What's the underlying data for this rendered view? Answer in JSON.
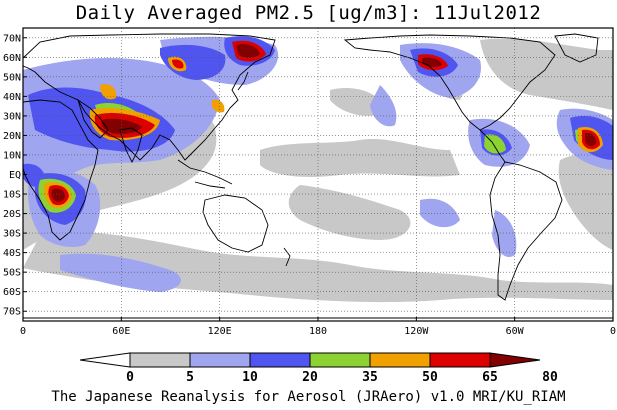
{
  "title": "Daily Averaged PM2.5 [ug/m3]: 11Jul2012",
  "footer": "The Japanese Reanalysis for Aerosol (JRAero) v1.0 MRI/KU_RIAM",
  "map": {
    "projection": "equirectangular",
    "central_longitude": 180,
    "lon_range": [
      0,
      360
    ],
    "lat_range": [
      -75,
      75
    ],
    "grid": true,
    "lat_ticks": [
      "70N",
      "60N",
      "50N",
      "40N",
      "30N",
      "20N",
      "10N",
      "EQ",
      "10S",
      "20S",
      "30S",
      "40S",
      "50S",
      "60S",
      "70S"
    ],
    "lat_values": [
      70,
      60,
      50,
      40,
      30,
      20,
      10,
      0,
      -10,
      -20,
      -30,
      -40,
      -50,
      -60,
      -70
    ],
    "lon_ticks": [
      "0",
      "60E",
      "120E",
      "180",
      "120W",
      "60W",
      "0"
    ],
    "lon_values": [
      0,
      60,
      120,
      180,
      240,
      300,
      360
    ]
  },
  "colorbar": {
    "levels": [
      "0",
      "5",
      "10",
      "20",
      "35",
      "50",
      "65",
      "80"
    ],
    "colors": [
      "#ffffff",
      "#c8c8c8",
      "#a0a5f0",
      "#5055f0",
      "#8cd232",
      "#f0a000",
      "#dc0000",
      "#820000"
    ]
  },
  "colors": {
    "land_outline": "#000000",
    "grid": "#555555",
    "background": "#ffffff"
  }
}
